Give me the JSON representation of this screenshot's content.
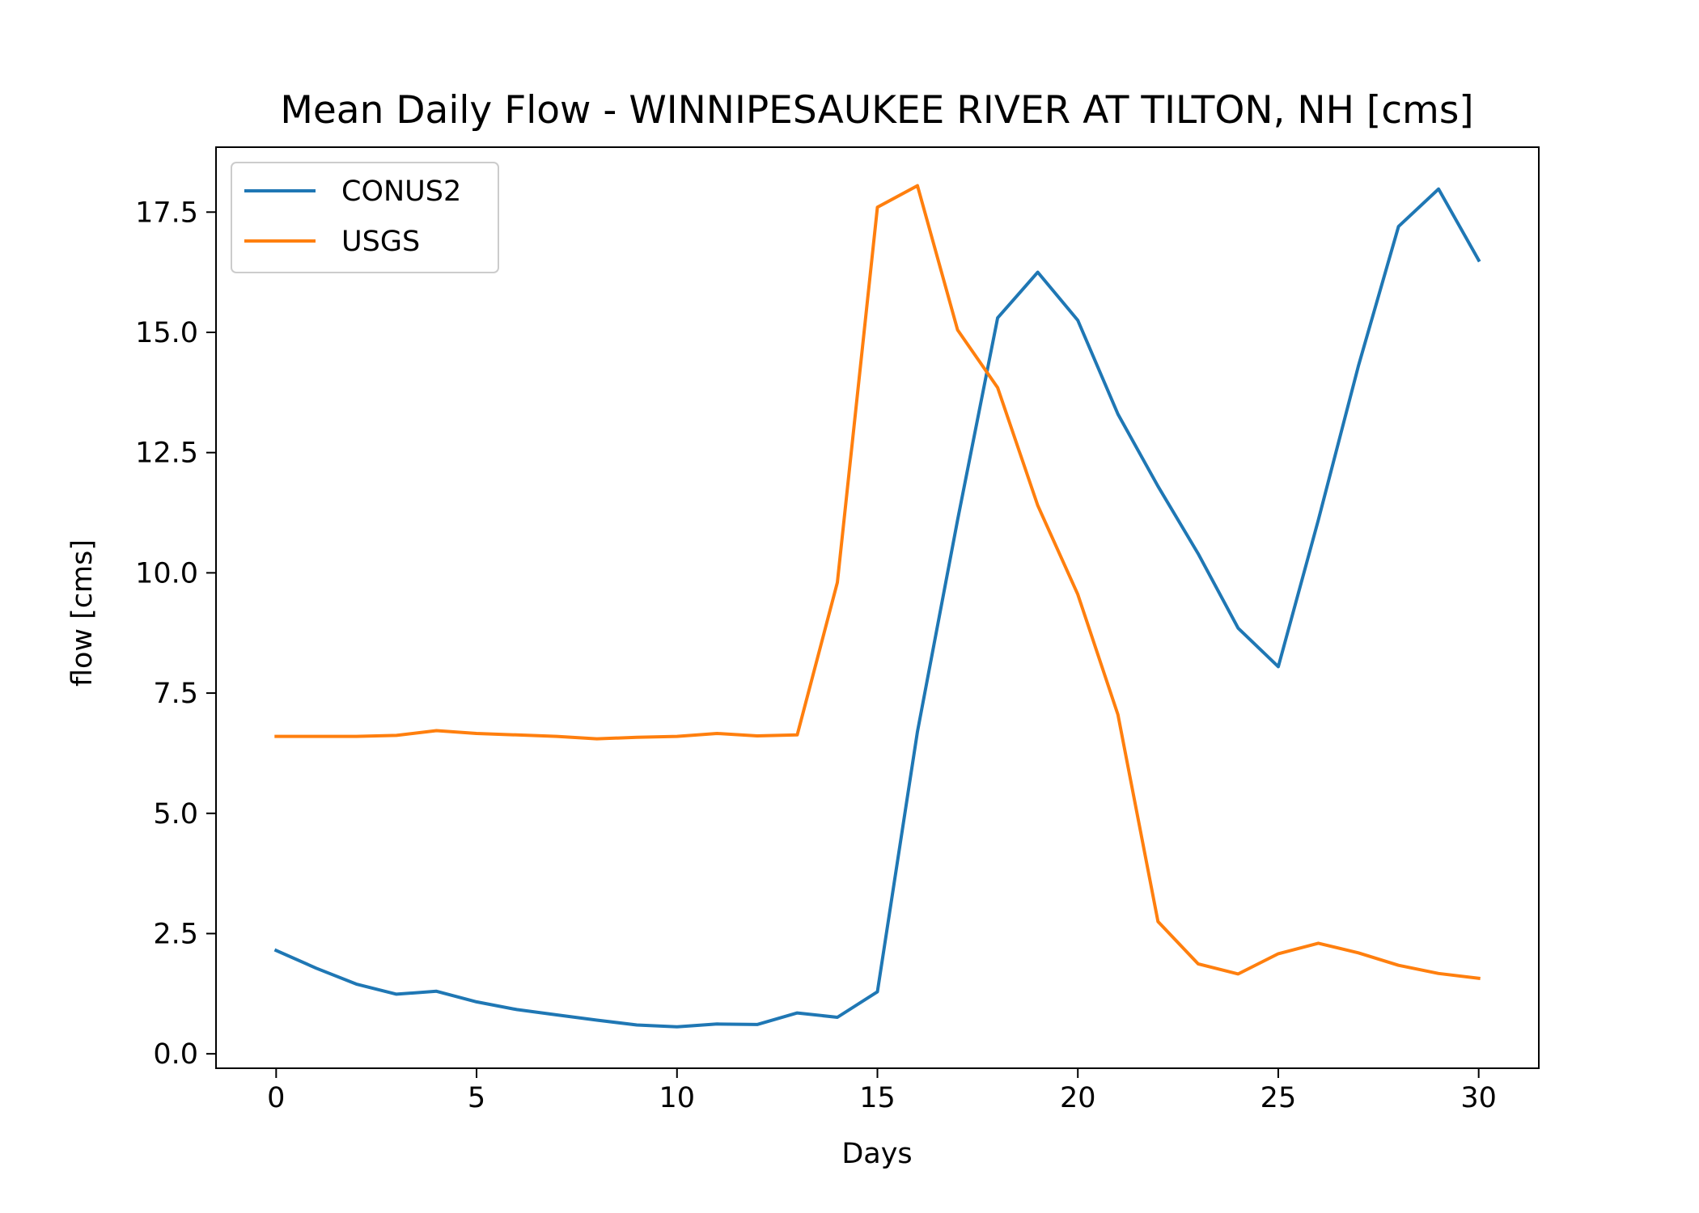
{
  "chart_data": {
    "type": "line",
    "title": "Mean Daily Flow - WINNIPESAUKEE RIVER AT TILTON, NH [cms]",
    "xlabel": "Days",
    "ylabel": "flow [cms]",
    "xlim": [
      -1.5,
      31.5
    ],
    "ylim": [
      -0.3,
      18.85
    ],
    "xticks": [
      0,
      5,
      10,
      15,
      20,
      25,
      30
    ],
    "xtick_labels": [
      "0",
      "5",
      "10",
      "15",
      "20",
      "25",
      "30"
    ],
    "yticks": [
      0,
      2.5,
      5,
      7.5,
      10,
      12.5,
      15,
      17.5
    ],
    "ytick_labels": [
      "0.0",
      "2.5",
      "5.0",
      "7.5",
      "10.0",
      "12.5",
      "15.0",
      "17.5"
    ],
    "grid": false,
    "legend_position": "top-left",
    "x": [
      0,
      1,
      2,
      3,
      4,
      5,
      6,
      7,
      8,
      9,
      10,
      11,
      12,
      13,
      14,
      15,
      16,
      17,
      18,
      19,
      20,
      21,
      22,
      23,
      24,
      25,
      26,
      27,
      28,
      29,
      30
    ],
    "series": [
      {
        "name": "CONUS2",
        "color": "#1f77b4",
        "values": [
          2.15,
          1.78,
          1.45,
          1.24,
          1.3,
          1.08,
          0.92,
          0.81,
          0.7,
          0.6,
          0.56,
          0.62,
          0.61,
          0.85,
          0.76,
          1.29,
          6.7,
          11.1,
          15.3,
          16.25,
          15.25,
          13.3,
          11.8,
          10.4,
          8.85,
          8.05,
          11.1,
          14.3,
          17.2,
          17.98,
          16.5
        ]
      },
      {
        "name": "USGS",
        "color": "#ff7f0e",
        "values": [
          6.6,
          6.6,
          6.6,
          6.62,
          6.72,
          6.66,
          6.63,
          6.6,
          6.55,
          6.58,
          6.6,
          6.66,
          6.61,
          6.63,
          9.8,
          17.6,
          18.05,
          15.05,
          13.85,
          11.4,
          9.55,
          7.05,
          2.75,
          1.87,
          1.66,
          2.08,
          2.3,
          2.1,
          1.84,
          1.67,
          1.57
        ]
      }
    ]
  }
}
